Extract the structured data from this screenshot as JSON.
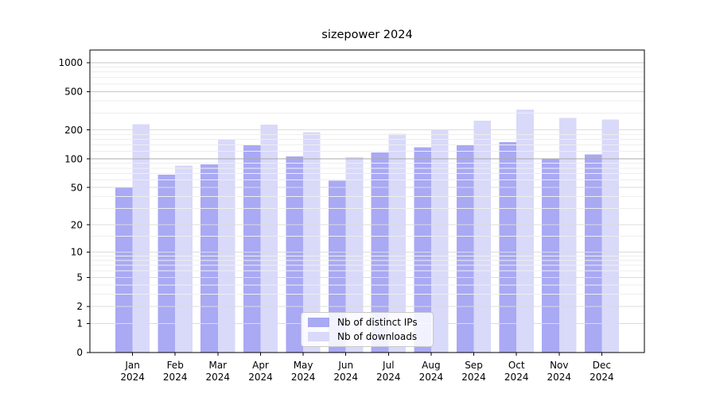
{
  "title": "sizepower 2024",
  "chart_data": {
    "type": "bar",
    "title": "sizepower 2024",
    "xlabel": "",
    "ylabel": "",
    "year": "2024",
    "categories": [
      "Jan",
      "Feb",
      "Mar",
      "Apr",
      "May",
      "Jun",
      "Jul",
      "Aug",
      "Sep",
      "Oct",
      "Nov",
      "Dec"
    ],
    "series": [
      {
        "name": "Nb of distinct IPs",
        "color": "#a9a9f4",
        "values": [
          50,
          68,
          88,
          139,
          106,
          59,
          117,
          132,
          139,
          150,
          100,
          111
        ]
      },
      {
        "name": "Nb of downloads",
        "color": "#d9d9fa",
        "values": [
          230,
          85,
          162,
          227,
          190,
          104,
          182,
          199,
          251,
          327,
          266,
          256
        ]
      }
    ],
    "yscale": "log1p",
    "ylim": [
      0,
      1350
    ],
    "yticks": [
      0,
      1,
      2,
      5,
      10,
      20,
      50,
      100,
      200,
      500,
      1000
    ],
    "minor_ticks": [
      3,
      4,
      6,
      7,
      8,
      9,
      15,
      30,
      40,
      60,
      70,
      80,
      90,
      120,
      140,
      160,
      180,
      300,
      400,
      600,
      700,
      800,
      900
    ],
    "grid": true,
    "legend_position": "lower center",
    "colors": {
      "grid_major_emphasis": "#a9a9a9",
      "grid_labeled": "#dcdcdc",
      "grid_minor": "#eeeeee",
      "axis": "#000000"
    }
  }
}
